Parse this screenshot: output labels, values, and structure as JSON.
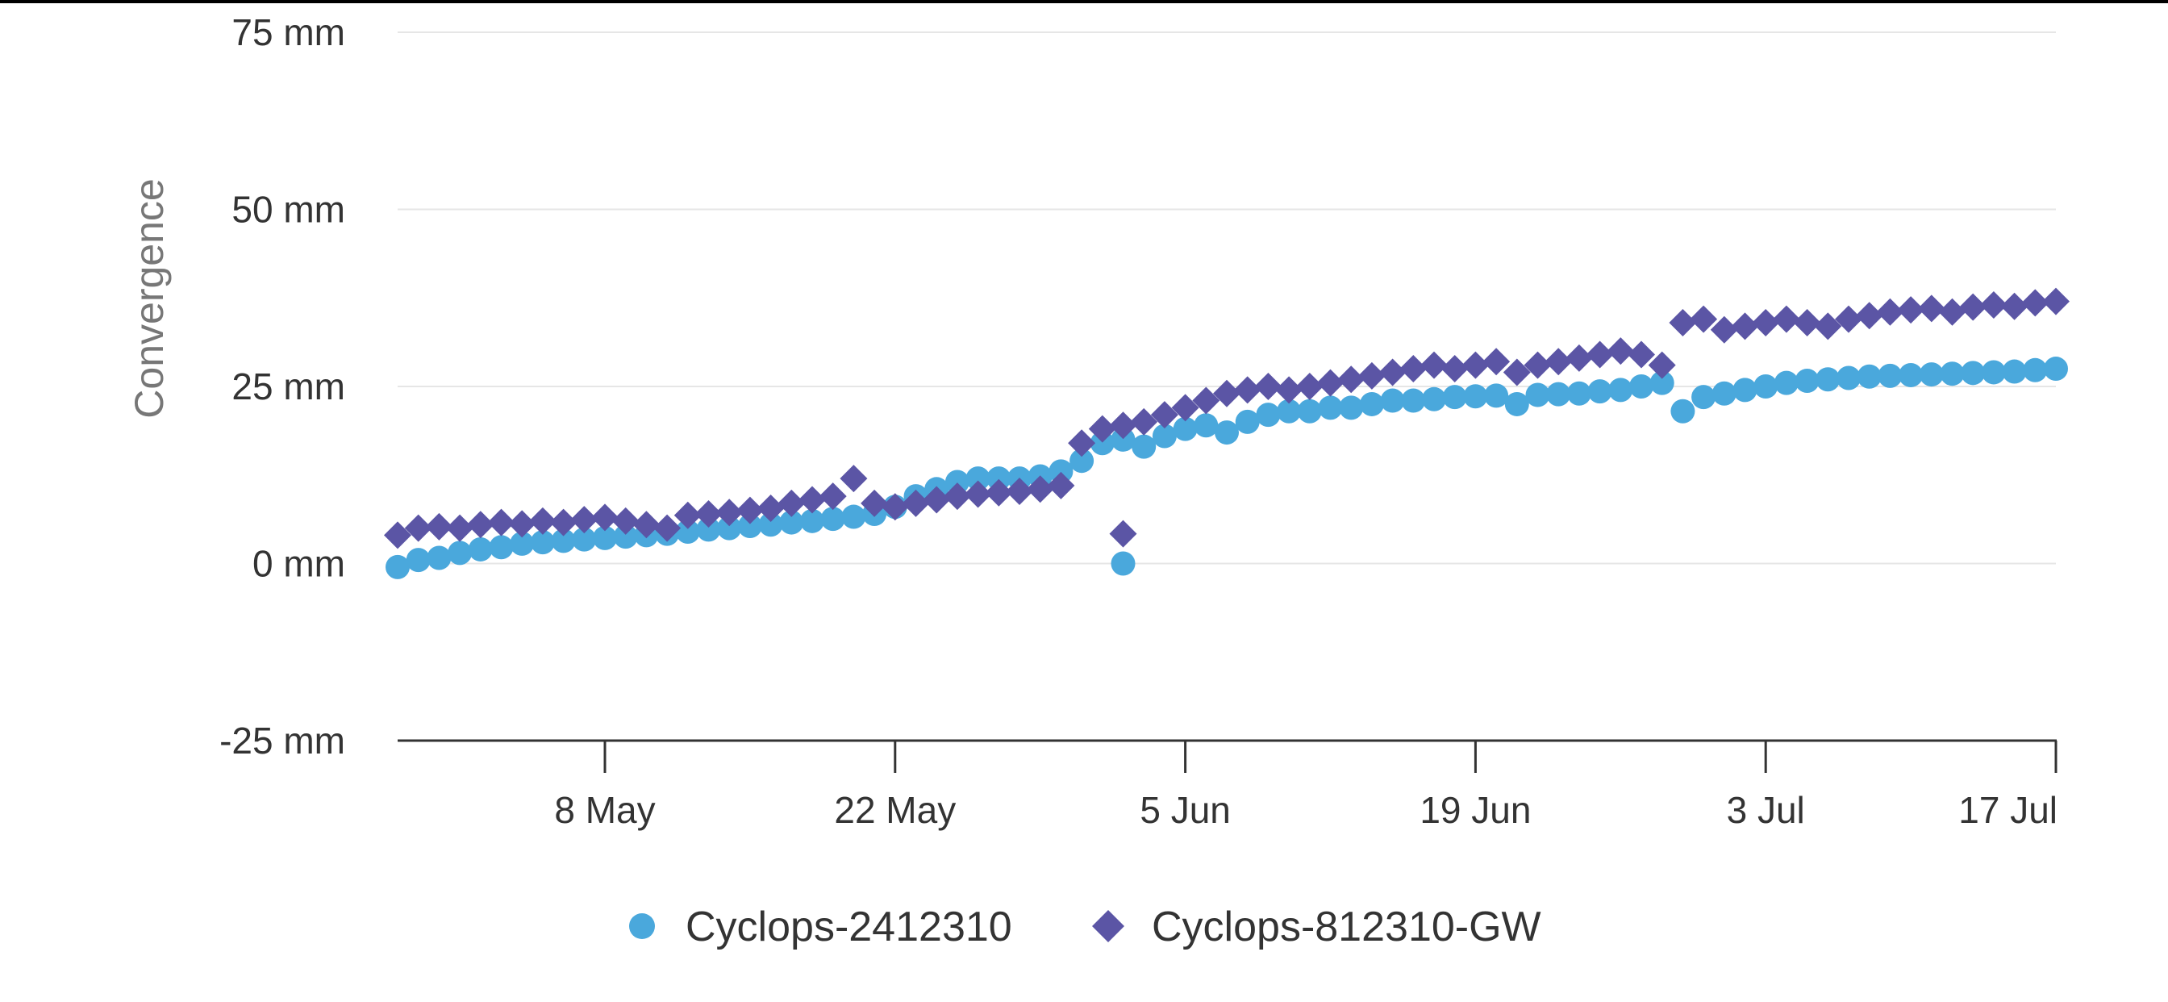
{
  "chart_data": {
    "type": "scatter",
    "title": "",
    "xlabel": "",
    "ylabel": "Convergence",
    "ylim": [
      -25,
      75
    ],
    "yticks": [
      75,
      50,
      25,
      0,
      -25
    ],
    "ytick_labels": [
      "75 mm",
      "50 mm",
      "25 mm",
      "0 mm",
      "-25 mm"
    ],
    "xlim": [
      "2024-04-28",
      "2024-07-17"
    ],
    "xticks": [
      "2024-05-08",
      "2024-05-22",
      "2024-06-05",
      "2024-06-19",
      "2024-07-03",
      "2024-07-17"
    ],
    "xtick_labels": [
      "8 May",
      "22 May",
      "5 Jun",
      "19 Jun",
      "3 Jul",
      "17 Jul"
    ],
    "grid": true,
    "legend_position": "bottom-center",
    "series": [
      {
        "name": "Cyclops-2412310",
        "marker": "circle",
        "color": "#4aa8dc",
        "points": [
          [
            "2024-04-28",
            -0.5
          ],
          [
            "2024-04-29",
            0.5
          ],
          [
            "2024-04-30",
            0.8
          ],
          [
            "2024-05-01",
            1.5
          ],
          [
            "2024-05-02",
            2.0
          ],
          [
            "2024-05-03",
            2.3
          ],
          [
            "2024-05-04",
            2.8
          ],
          [
            "2024-05-05",
            3.0
          ],
          [
            "2024-05-06",
            3.2
          ],
          [
            "2024-05-07",
            3.4
          ],
          [
            "2024-05-08",
            3.6
          ],
          [
            "2024-05-09",
            3.8
          ],
          [
            "2024-05-10",
            4.0
          ],
          [
            "2024-05-11",
            4.2
          ],
          [
            "2024-05-12",
            4.5
          ],
          [
            "2024-05-13",
            4.8
          ],
          [
            "2024-05-14",
            5.0
          ],
          [
            "2024-05-15",
            5.3
          ],
          [
            "2024-05-16",
            5.5
          ],
          [
            "2024-05-17",
            5.8
          ],
          [
            "2024-05-18",
            6.0
          ],
          [
            "2024-05-19",
            6.3
          ],
          [
            "2024-05-20",
            6.6
          ],
          [
            "2024-05-21",
            7.0
          ],
          [
            "2024-05-22",
            8.0
          ],
          [
            "2024-05-23",
            9.5
          ],
          [
            "2024-05-24",
            10.5
          ],
          [
            "2024-05-25",
            11.5
          ],
          [
            "2024-05-26",
            12.0
          ],
          [
            "2024-05-27",
            12.0
          ],
          [
            "2024-05-28",
            12.0
          ],
          [
            "2024-05-29",
            12.3
          ],
          [
            "2024-05-30",
            13.0
          ],
          [
            "2024-05-31",
            14.5
          ],
          [
            "2024-06-01",
            17.0
          ],
          [
            "2024-06-02",
            17.5
          ],
          [
            "2024-06-02",
            0.0
          ],
          [
            "2024-06-03",
            16.5
          ],
          [
            "2024-06-04",
            18.0
          ],
          [
            "2024-06-05",
            19.0
          ],
          [
            "2024-06-06",
            19.5
          ],
          [
            "2024-06-07",
            18.5
          ],
          [
            "2024-06-08",
            20.0
          ],
          [
            "2024-06-09",
            21.0
          ],
          [
            "2024-06-10",
            21.5
          ],
          [
            "2024-06-11",
            21.5
          ],
          [
            "2024-06-12",
            22.0
          ],
          [
            "2024-06-13",
            22.0
          ],
          [
            "2024-06-14",
            22.5
          ],
          [
            "2024-06-15",
            23.0
          ],
          [
            "2024-06-16",
            23.0
          ],
          [
            "2024-06-17",
            23.2
          ],
          [
            "2024-06-18",
            23.5
          ],
          [
            "2024-06-19",
            23.6
          ],
          [
            "2024-06-20",
            23.7
          ],
          [
            "2024-06-21",
            22.5
          ],
          [
            "2024-06-22",
            23.8
          ],
          [
            "2024-06-23",
            23.9
          ],
          [
            "2024-06-24",
            24.0
          ],
          [
            "2024-06-25",
            24.3
          ],
          [
            "2024-06-26",
            24.5
          ],
          [
            "2024-06-27",
            25.0
          ],
          [
            "2024-06-28",
            25.5
          ],
          [
            "2024-06-29",
            21.5
          ],
          [
            "2024-06-30",
            23.5
          ],
          [
            "2024-07-01",
            24.0
          ],
          [
            "2024-07-02",
            24.5
          ],
          [
            "2024-07-03",
            25.0
          ],
          [
            "2024-07-04",
            25.5
          ],
          [
            "2024-07-05",
            25.8
          ],
          [
            "2024-07-06",
            26.0
          ],
          [
            "2024-07-07",
            26.2
          ],
          [
            "2024-07-08",
            26.4
          ],
          [
            "2024-07-09",
            26.5
          ],
          [
            "2024-07-10",
            26.6
          ],
          [
            "2024-07-11",
            26.7
          ],
          [
            "2024-07-12",
            26.8
          ],
          [
            "2024-07-13",
            26.9
          ],
          [
            "2024-07-14",
            27.0
          ],
          [
            "2024-07-15",
            27.1
          ],
          [
            "2024-07-16",
            27.3
          ],
          [
            "2024-07-17",
            27.5
          ]
        ]
      },
      {
        "name": "Cyclops-812310-GW",
        "marker": "diamond",
        "color": "#5b55a5",
        "points": [
          [
            "2024-04-28",
            4.0
          ],
          [
            "2024-04-29",
            5.0
          ],
          [
            "2024-04-30",
            5.2
          ],
          [
            "2024-05-01",
            5.0
          ],
          [
            "2024-05-02",
            5.5
          ],
          [
            "2024-05-03",
            5.8
          ],
          [
            "2024-05-04",
            5.6
          ],
          [
            "2024-05-05",
            6.0
          ],
          [
            "2024-05-06",
            5.8
          ],
          [
            "2024-05-07",
            6.2
          ],
          [
            "2024-05-08",
            6.5
          ],
          [
            "2024-05-09",
            6.0
          ],
          [
            "2024-05-10",
            5.5
          ],
          [
            "2024-05-11",
            5.0
          ],
          [
            "2024-05-12",
            6.8
          ],
          [
            "2024-05-13",
            7.0
          ],
          [
            "2024-05-14",
            7.2
          ],
          [
            "2024-05-15",
            7.5
          ],
          [
            "2024-05-16",
            7.8
          ],
          [
            "2024-05-17",
            8.5
          ],
          [
            "2024-05-18",
            9.0
          ],
          [
            "2024-05-19",
            9.5
          ],
          [
            "2024-05-20",
            12.0
          ],
          [
            "2024-05-21",
            8.5
          ],
          [
            "2024-05-22",
            8.0
          ],
          [
            "2024-05-23",
            8.5
          ],
          [
            "2024-05-24",
            9.0
          ],
          [
            "2024-05-25",
            9.5
          ],
          [
            "2024-05-26",
            9.8
          ],
          [
            "2024-05-27",
            10.0
          ],
          [
            "2024-05-28",
            10.2
          ],
          [
            "2024-05-29",
            10.5
          ],
          [
            "2024-05-30",
            11.0
          ],
          [
            "2024-05-31",
            17.0
          ],
          [
            "2024-06-01",
            19.0
          ],
          [
            "2024-06-02",
            19.5
          ],
          [
            "2024-06-02",
            4.2
          ],
          [
            "2024-06-03",
            20.0
          ],
          [
            "2024-06-04",
            21.0
          ],
          [
            "2024-06-05",
            22.0
          ],
          [
            "2024-06-06",
            23.0
          ],
          [
            "2024-06-07",
            24.0
          ],
          [
            "2024-06-08",
            24.5
          ],
          [
            "2024-06-09",
            25.0
          ],
          [
            "2024-06-10",
            24.5
          ],
          [
            "2024-06-11",
            25.0
          ],
          [
            "2024-06-12",
            25.5
          ],
          [
            "2024-06-13",
            26.0
          ],
          [
            "2024-06-14",
            26.5
          ],
          [
            "2024-06-15",
            27.0
          ],
          [
            "2024-06-16",
            27.5
          ],
          [
            "2024-06-17",
            28.0
          ],
          [
            "2024-06-18",
            27.5
          ],
          [
            "2024-06-19",
            28.0
          ],
          [
            "2024-06-20",
            28.5
          ],
          [
            "2024-06-21",
            27.0
          ],
          [
            "2024-06-22",
            28.0
          ],
          [
            "2024-06-23",
            28.5
          ],
          [
            "2024-06-24",
            29.0
          ],
          [
            "2024-06-25",
            29.5
          ],
          [
            "2024-06-26",
            30.0
          ],
          [
            "2024-06-27",
            29.5
          ],
          [
            "2024-06-28",
            28.0
          ],
          [
            "2024-06-29",
            34.0
          ],
          [
            "2024-06-30",
            34.5
          ],
          [
            "2024-07-01",
            33.0
          ],
          [
            "2024-07-02",
            33.5
          ],
          [
            "2024-07-03",
            34.0
          ],
          [
            "2024-07-04",
            34.5
          ],
          [
            "2024-07-05",
            34.0
          ],
          [
            "2024-07-06",
            33.5
          ],
          [
            "2024-07-07",
            34.5
          ],
          [
            "2024-07-08",
            35.0
          ],
          [
            "2024-07-09",
            35.5
          ],
          [
            "2024-07-10",
            35.8
          ],
          [
            "2024-07-11",
            36.0
          ],
          [
            "2024-07-12",
            35.5
          ],
          [
            "2024-07-13",
            36.2
          ],
          [
            "2024-07-14",
            36.5
          ],
          [
            "2024-07-15",
            36.3
          ],
          [
            "2024-07-16",
            36.8
          ],
          [
            "2024-07-17",
            37.0
          ]
        ]
      }
    ]
  },
  "colors": {
    "grid": "#e6e6e6",
    "axis": "#333333",
    "circle_series": "#4aa8dc",
    "diamond_series": "#5b55a5"
  }
}
